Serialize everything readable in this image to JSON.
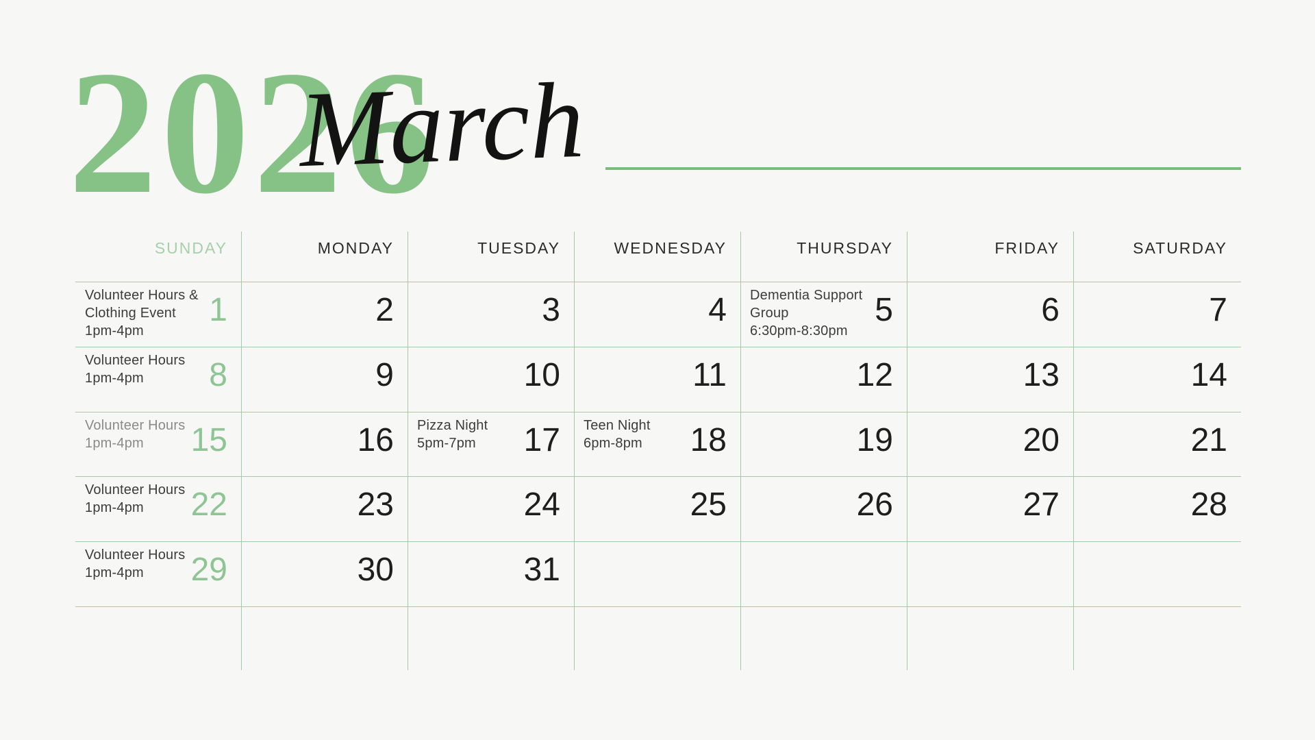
{
  "header": {
    "year": "2026",
    "month": "March"
  },
  "calendar": {
    "day_headers": [
      "SUNDAY",
      "MONDAY",
      "TUESDAY",
      "WEDNESDAY",
      "THURSDAY",
      "FRIDAY",
      "SATURDAY"
    ],
    "weeks": [
      [
        {
          "day": "1",
          "event": {
            "name": "Volunteer Hours &\nClothing Event",
            "time": "1pm-4pm"
          }
        },
        {
          "day": "2"
        },
        {
          "day": "3"
        },
        {
          "day": "4"
        },
        {
          "day": "5",
          "event": {
            "name": "Dementia Support\nGroup",
            "time": "6:30pm-8:30pm"
          }
        },
        {
          "day": "6"
        },
        {
          "day": "7"
        }
      ],
      [
        {
          "day": "8",
          "event": {
            "name": "Volunteer Hours",
            "time": "1pm-4pm"
          }
        },
        {
          "day": "9"
        },
        {
          "day": "10"
        },
        {
          "day": "11"
        },
        {
          "day": "12"
        },
        {
          "day": "13"
        },
        {
          "day": "14"
        }
      ],
      [
        {
          "day": "15",
          "event": {
            "name": "Volunteer Hours",
            "time": "1pm-4pm",
            "muted": true
          }
        },
        {
          "day": "16"
        },
        {
          "day": "17",
          "event": {
            "name": "Pizza Night",
            "time": "5pm-7pm"
          }
        },
        {
          "day": "18",
          "event": {
            "name": "Teen Night",
            "time": "6pm-8pm"
          }
        },
        {
          "day": "19"
        },
        {
          "day": "20"
        },
        {
          "day": "21"
        }
      ],
      [
        {
          "day": "22",
          "event": {
            "name": "Volunteer Hours",
            "time": "1pm-4pm"
          }
        },
        {
          "day": "23"
        },
        {
          "day": "24"
        },
        {
          "day": "25"
        },
        {
          "day": "26"
        },
        {
          "day": "27"
        },
        {
          "day": "28"
        }
      ],
      [
        {
          "day": "29",
          "event": {
            "name": "Volunteer Hours",
            "time": "1pm-4pm"
          }
        },
        {
          "day": "30"
        },
        {
          "day": "31"
        },
        {},
        {},
        {},
        {}
      ]
    ]
  },
  "colors": {
    "background": "#f7f7f5",
    "year_green": "#86c186",
    "underline_green": "#79be79",
    "grid_line_green": "#a3cca4",
    "sunday_header_green": "#a8cfab",
    "sunday_number_green": "#8fc494",
    "weekday_header_dark": "#2b2b2b",
    "day_number_dark": "#1e1e1e",
    "event_text": "#3c3c3c",
    "event_text_muted": "#8a8a8a",
    "month_script_black": "#131313"
  }
}
